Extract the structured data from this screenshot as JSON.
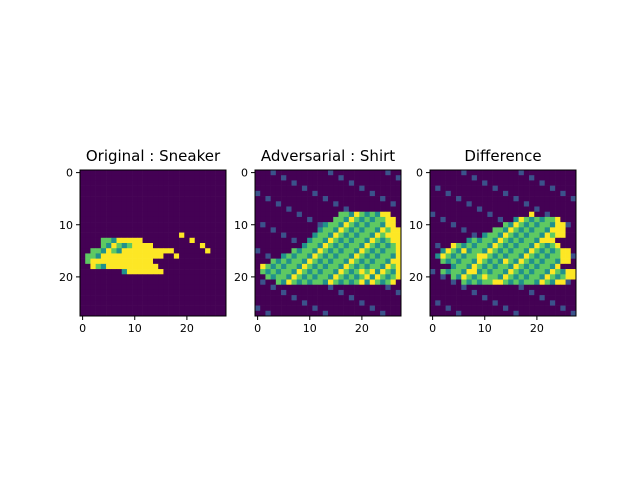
{
  "colors": {
    "background": "#ffffff",
    "cmap": [
      "#440154",
      "#3b528b",
      "#21918c",
      "#5ec962",
      "#fde725"
    ]
  },
  "chart_data": [
    {
      "type": "heatmap",
      "title": "Original : Sneaker",
      "colormap": "viridis",
      "rows": 28,
      "cols": 28,
      "xticks": [
        "0",
        "10",
        "20"
      ],
      "yticks": [
        "0",
        "10",
        "20"
      ],
      "profile": [
        [
          13,
          4,
          4,
          4
        ],
        [
          14,
          4,
          6,
          4
        ],
        [
          15,
          2,
          6,
          10
        ],
        [
          16,
          1,
          3,
          12
        ],
        [
          17,
          1,
          1,
          12
        ],
        [
          18,
          2,
          3,
          10
        ],
        [
          19,
          8,
          2,
          6
        ],
        [
          20,
          12,
          0,
          0
        ]
      ],
      "highlights": [
        [
          12,
          19
        ],
        [
          13,
          21
        ],
        [
          14,
          23
        ],
        [
          15,
          24
        ],
        [
          16,
          10
        ],
        [
          16,
          18
        ],
        [
          17,
          5
        ]
      ]
    },
    {
      "type": "heatmap",
      "title": "Adversarial : Shirt",
      "colormap": "viridis",
      "rows": 28,
      "cols": 28,
      "xticks": [
        "0",
        "10",
        "20"
      ],
      "yticks": [
        "0",
        "10",
        "20"
      ],
      "profile": [
        [
          8,
          16,
          8,
          2
        ],
        [
          9,
          15,
          10,
          2
        ],
        [
          10,
          13,
          12,
          2
        ],
        [
          11,
          12,
          14,
          2
        ],
        [
          12,
          11,
          14,
          3
        ],
        [
          13,
          10,
          16,
          2
        ],
        [
          14,
          9,
          18,
          2
        ],
        [
          15,
          7,
          20,
          1
        ],
        [
          16,
          5,
          22,
          1
        ],
        [
          17,
          3,
          24,
          1
        ],
        [
          18,
          1,
          26,
          1
        ],
        [
          19,
          1,
          26,
          1
        ],
        [
          20,
          2,
          25,
          1
        ],
        [
          21,
          4,
          22,
          1
        ]
      ],
      "highlights": [
        [
          19,
          20
        ],
        [
          19,
          22
        ],
        [
          19,
          24
        ],
        [
          20,
          21
        ],
        [
          20,
          23
        ],
        [
          21,
          20
        ],
        [
          21,
          22
        ]
      ]
    },
    {
      "type": "heatmap",
      "title": "Difference",
      "colormap": "viridis",
      "rows": 28,
      "cols": 28,
      "xticks": [
        "0",
        "10",
        "20"
      ],
      "yticks": [
        "0",
        "10",
        "20"
      ],
      "profile": [
        [
          9,
          16,
          8,
          1
        ],
        [
          10,
          14,
          10,
          2
        ],
        [
          11,
          12,
          12,
          2
        ],
        [
          12,
          10,
          14,
          2
        ],
        [
          13,
          7,
          16,
          1
        ],
        [
          14,
          4,
          20,
          1
        ],
        [
          15,
          2,
          23,
          2
        ],
        [
          16,
          1,
          24,
          2
        ],
        [
          17,
          2,
          23,
          2
        ],
        [
          18,
          4,
          20,
          1
        ],
        [
          19,
          2,
          24,
          2
        ],
        [
          20,
          4,
          22,
          2
        ],
        [
          21,
          6,
          18,
          2
        ]
      ],
      "highlights": [
        [
          8,
          19
        ],
        [
          13,
          22
        ],
        [
          15,
          6
        ],
        [
          16,
          9
        ],
        [
          17,
          14
        ],
        [
          19,
          8
        ],
        [
          20,
          10
        ],
        [
          21,
          12
        ]
      ]
    }
  ]
}
